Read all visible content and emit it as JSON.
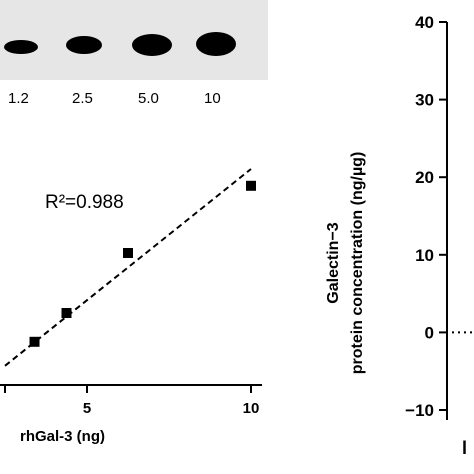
{
  "blot": {
    "lanes": [
      {
        "label": "1.2",
        "intensity": 0.3
      },
      {
        "label": "2.5",
        "intensity": 0.55
      },
      {
        "label": "5.0",
        "intensity": 0.8
      },
      {
        "label": "10",
        "intensity": 1.0
      }
    ]
  },
  "chart_data": [
    {
      "type": "scatter",
      "title": "",
      "xlabel": "rhGal-3 (ng)",
      "ylabel": "",
      "x_ticks": [
        "5",
        "10"
      ],
      "annotation": "R²=0.988",
      "points": [
        {
          "x": 1.2,
          "y": 0.18
        },
        {
          "x": 2.5,
          "y": 0.3
        },
        {
          "x": 5.0,
          "y": 0.55
        },
        {
          "x": 10.0,
          "y": 0.83
        }
      ],
      "fit_line": {
        "style": "dashed",
        "start": {
          "x": 0,
          "y": 0.08
        },
        "end": {
          "x": 10,
          "y": 0.9
        }
      },
      "xlim": [
        0,
        10
      ],
      "ylim": [
        0,
        1
      ]
    },
    {
      "type": "scatter",
      "title": "",
      "xlabel": "",
      "ylabel_line1": "Galectin−3",
      "ylabel_line2": "protein concentration (ng/µg)",
      "y_ticks": [
        "40",
        "30",
        "20",
        "10",
        "0",
        "−10"
      ],
      "ylim": [
        -10,
        40
      ],
      "reference": {
        "y": 0,
        "style": "dotted"
      }
    }
  ]
}
